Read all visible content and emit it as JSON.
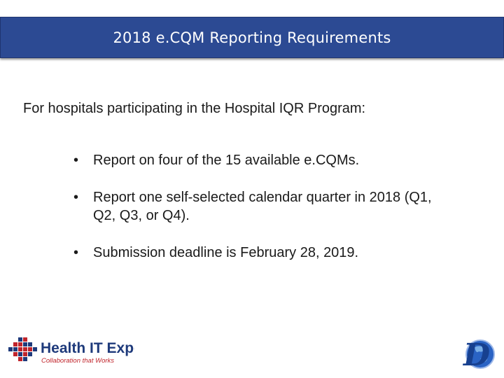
{
  "slide": {
    "title": "2018 e.CQM Reporting Requirements",
    "intro": "For hospitals participating in the Hospital IQR Program:",
    "bullets": [
      {
        "marker": "•",
        "text": "Report on four of the 15 available e.CQMs."
      },
      {
        "marker": "•",
        "text": "Report one self-selected calendar quarter in 2018 (Q1, Q2, Q3, or Q4)."
      },
      {
        "marker": "•",
        "text": "Submission deadline is February 28, 2019."
      }
    ]
  },
  "logos": {
    "left": {
      "name": "Health IT Expo",
      "tagline": "Collaboration that Works",
      "text_color": "#1e3a7b",
      "tagline_color": "#c0242b"
    },
    "right": {
      "letter": "D",
      "color": "#1e4fa8"
    }
  },
  "colors": {
    "title_bar": "#2c4a93",
    "title_text": "#ffffff",
    "body_text": "#1a1a1a"
  }
}
